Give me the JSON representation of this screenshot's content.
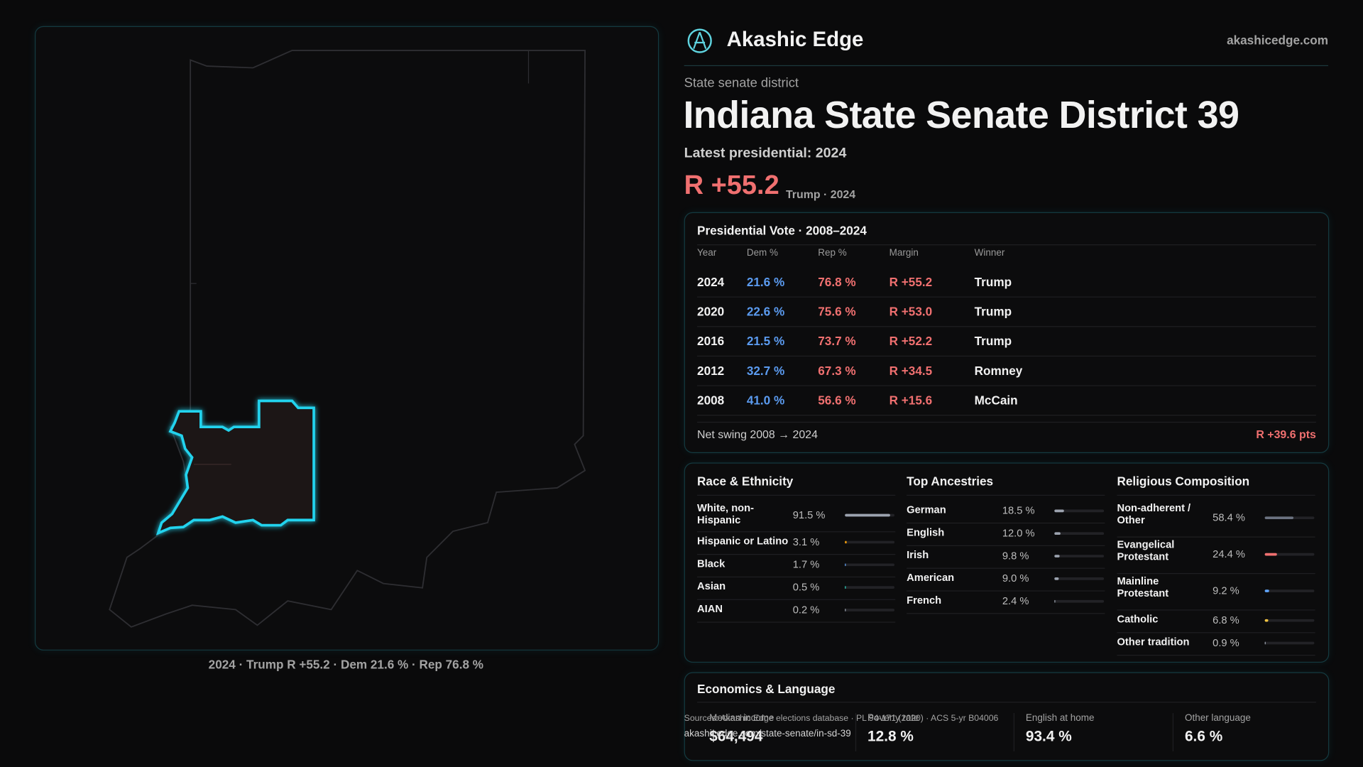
{
  "header": {
    "brand": "Akashic Edge",
    "site": "akashicedge.com"
  },
  "district": {
    "kind": "State senate district",
    "title": "Indiana State Senate District 39",
    "latest": "Latest presidential: 2024",
    "margin": "R +55.2",
    "margin_note": "Trump · 2024"
  },
  "map": {
    "caption": "2024 · Trump R +55.2 · Dem 21.6 % · Rep 76.8 %"
  },
  "presidential": {
    "title": "Presidential Vote · 2008–2024",
    "columns": [
      "Year",
      "Dem %",
      "Rep %",
      "Margin",
      "Winner"
    ],
    "rows": [
      [
        "2024",
        "21.6 %",
        "76.8 %",
        "R +55.2",
        "Trump"
      ],
      [
        "2020",
        "22.6 %",
        "75.6 %",
        "R +53.0",
        "Trump"
      ],
      [
        "2016",
        "21.5 %",
        "73.7 %",
        "R +52.2",
        "Trump"
      ],
      [
        "2012",
        "32.7 %",
        "67.3 %",
        "R +34.5",
        "Romney"
      ],
      [
        "2008",
        "41.0 %",
        "56.6 %",
        "R +15.6",
        "McCain"
      ]
    ],
    "swing_label": "Net swing 2008 → 2024",
    "swing": "R +39.6 pts"
  },
  "race": {
    "title": "Race & Ethnicity",
    "rows": [
      {
        "label": "White, non-Hispanic",
        "value": 91.5,
        "value_label": "91.5 %",
        "color": "#9ca3af"
      },
      {
        "label": "Hispanic or Latino",
        "value": 3.1,
        "value_label": "3.1 %",
        "color": "#f59e0b"
      },
      {
        "label": "Black",
        "value": 1.7,
        "value_label": "1.7 %",
        "color": "#60a5fa"
      },
      {
        "label": "Asian",
        "value": 0.5,
        "value_label": "0.5 %",
        "color": "#2dd4bf"
      },
      {
        "label": "AIAN",
        "value": 0.2,
        "value_label": "0.2 %",
        "color": "#9ca3af"
      }
    ]
  },
  "ancestry": {
    "title": "Top Ancestries",
    "rows": [
      {
        "label": "German",
        "value": 18.5,
        "value_label": "18.5 %",
        "color": "#9ca3af"
      },
      {
        "label": "English",
        "value": 12.0,
        "value_label": "12.0 %",
        "color": "#9ca3af"
      },
      {
        "label": "Irish",
        "value": 9.8,
        "value_label": "9.8 %",
        "color": "#9ca3af"
      },
      {
        "label": "American",
        "value": 9.0,
        "value_label": "9.0 %",
        "color": "#9ca3af"
      },
      {
        "label": "French",
        "value": 2.4,
        "value_label": "2.4 %",
        "color": "#9ca3af"
      }
    ]
  },
  "religion": {
    "title": "Religious Composition",
    "rows": [
      {
        "label": "Non-adherent / Other",
        "value": 58.4,
        "value_label": "58.4 %",
        "color": "#6b7280"
      },
      {
        "label": "Evangelical Protestant",
        "value": 24.4,
        "value_label": "24.4 %",
        "color": "#f07070"
      },
      {
        "label": "Mainline Protestant",
        "value": 9.2,
        "value_label": "9.2 %",
        "color": "#60a5fa"
      },
      {
        "label": "Catholic",
        "value": 6.8,
        "value_label": "6.8 %",
        "color": "#f5c542"
      },
      {
        "label": "Other tradition",
        "value": 0.9,
        "value_label": "0.9 %",
        "color": "#9ca3af"
      }
    ]
  },
  "economics": {
    "title": "Economics & Language",
    "cells": [
      {
        "label": "Median income",
        "value": "$64,494"
      },
      {
        "label": "Poverty rate",
        "value": "12.8 %"
      },
      {
        "label": "English at home",
        "value": "93.4 %"
      },
      {
        "label": "Other language",
        "value": "6.6 %"
      }
    ]
  },
  "footer": {
    "sources": "Sources: Akashic Edge elections database · PL 94-171 (2020) · ACS 5-yr B04006",
    "url": "akashicedge.com/state-senate/in-sd-39"
  }
}
